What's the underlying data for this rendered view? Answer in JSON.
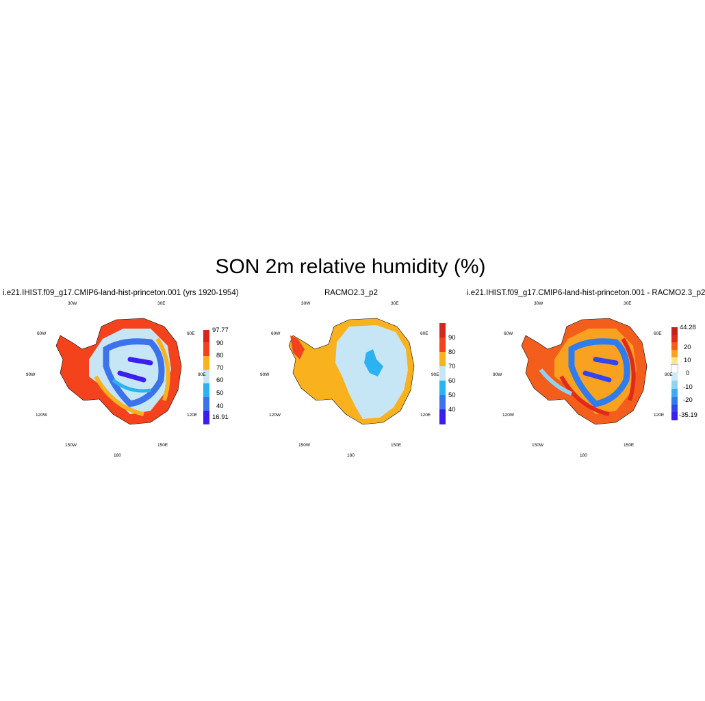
{
  "title": "SON 2m relative humidity (%)",
  "panels": [
    {
      "title": "i.e21.IHIST.f09_g17.CMIP6-land-hist-princeton.001 (yrs 1920-1954)",
      "colorbar": {
        "labels": [
          "97.77",
          "90",
          "80",
          "70",
          "60",
          "50",
          "40",
          "16.91"
        ],
        "colors": [
          "#d7261e",
          "#f4421d",
          "#f9b21e",
          "#c6e6f6",
          "#2ab3f0",
          "#3c73ec",
          "#3b1ff1"
        ]
      }
    },
    {
      "title": "RACMO2.3_p2",
      "colorbar": {
        "labels": [
          "90",
          "80",
          "70",
          "60",
          "50",
          "40"
        ],
        "colors": [
          "#d7261e",
          "#f4421d",
          "#f9b21e",
          "#c6e6f6",
          "#2ab3f0",
          "#3c73ec",
          "#3b1ff1"
        ]
      }
    },
    {
      "title": "i.e21.IHIST.f09_g17.CMIP6-land-hist-princeton.001 - RACMO2.3_p2",
      "colorbar": {
        "labels": [
          "44.28",
          "20",
          "10",
          "0",
          "-10",
          "-20",
          "-35.19"
        ],
        "colors": [
          "#c8201d",
          "#e22a1b",
          "#f45e1c",
          "#f9a21f",
          "#fbe58c",
          "#ffffff",
          "#cfeaf6",
          "#8fd2f2",
          "#3fa9ef",
          "#2f7cee",
          "#3146ee",
          "#3b1ff1"
        ]
      }
    }
  ],
  "longitude_labels": [
    "30W",
    "30E",
    "60W",
    "60E",
    "90W",
    "90E",
    "120W",
    "120E",
    "150W",
    "150E",
    "180"
  ],
  "legend_colors": {
    "high": "#d7261e",
    "mid_high": "#f4421d",
    "orange": "#f9b21e",
    "light_blue": "#c6e6f6",
    "cyan": "#2ab3f0",
    "blue": "#3c73ec",
    "violet": "#3b1ff1"
  }
}
